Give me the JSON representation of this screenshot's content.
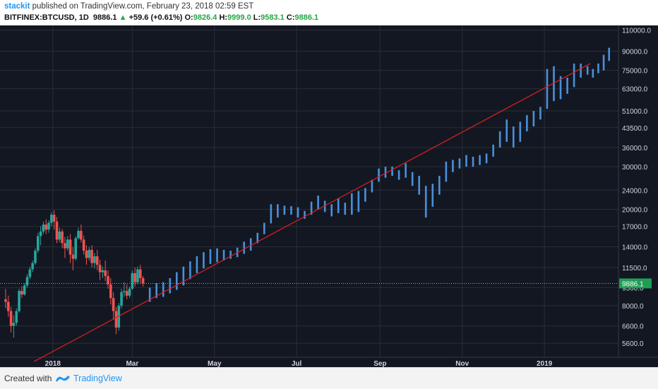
{
  "header": {
    "author": "stackit",
    "published_text": " published on TradingView.com, February 23, 2018 02:59 EST",
    "symbol": "BITFINEX:BTCUSD, 1D",
    "price": "9886.1",
    "change": "+59.6 (+0.61%)",
    "open_label": "O:",
    "open": "9826.4",
    "high_label": "H:",
    "high": "9999.0",
    "low_label": "L:",
    "low": "9583.1",
    "close_label": "C:",
    "close": "9886.1"
  },
  "footer": {
    "created_with": "Created with",
    "brand": "TradingView"
  },
  "colors": {
    "background": "#131722",
    "grid": "#2a2e39",
    "up": "#26a69a",
    "down": "#ef5350",
    "projection": "#4a90d9",
    "trendline": "#e02020",
    "price_line": "#8fb8a0",
    "price_tag": "#1f9e55"
  },
  "chart_data": {
    "type": "ohlc",
    "y_scale": "log",
    "ylim": [
      4900,
      115000
    ],
    "y_ticks": [
      5600,
      6600,
      8000,
      9500,
      11500,
      14000,
      17000,
      20000,
      24000,
      30000,
      36000,
      43500,
      51000,
      63000,
      75000,
      90000,
      110000
    ],
    "y_tick_labels": [
      "5600.0",
      "6600.0",
      "8000.0",
      "9500.0",
      "11500.0",
      "14000.0",
      "17000.0",
      "20000.0",
      "24000.0",
      "30000.0",
      "36000.0",
      "43500.0",
      "51000.0",
      "63000.0",
      "75000.0",
      "90000.0",
      "110000.0"
    ],
    "x_labels": [
      "2018",
      "Mar",
      "May",
      "Jul",
      "Sep",
      "Nov",
      "2019"
    ],
    "x_label_dates": [
      "2018-01-01",
      "2018-03-01",
      "2018-05-01",
      "2018-07-01",
      "2018-09-01",
      "2018-11-01",
      "2019-01-01"
    ],
    "x_range": [
      "2017-11-27",
      "2019-02-04"
    ],
    "last_price": 9886.1,
    "last_price_label": "9886.1",
    "trendline": {
      "start": [
        "2017-12-18",
        4700
      ],
      "end": [
        "2019-02-04",
        80000
      ]
    },
    "daily_candles": [
      {
        "d": "2017-11-27",
        "o": 8500,
        "h": 9400,
        "c": 8300,
        "l": 7800
      },
      {
        "d": "2017-11-29",
        "o": 8300,
        "h": 8800,
        "c": 7600,
        "l": 7200
      },
      {
        "d": "2017-12-01",
        "o": 7600,
        "h": 7900,
        "c": 6600,
        "l": 6200
      },
      {
        "d": "2017-12-03",
        "o": 6600,
        "h": 7300,
        "c": 6800,
        "l": 5900
      },
      {
        "d": "2017-12-05",
        "o": 6800,
        "h": 7800,
        "c": 7600,
        "l": 6600
      },
      {
        "d": "2017-12-07",
        "o": 7600,
        "h": 9400,
        "c": 9200,
        "l": 7500
      },
      {
        "d": "2017-12-09",
        "o": 9200,
        "h": 9600,
        "c": 8900,
        "l": 8600
      },
      {
        "d": "2017-12-11",
        "o": 8900,
        "h": 9900,
        "c": 9700,
        "l": 8800
      },
      {
        "d": "2017-12-13",
        "o": 9700,
        "h": 10800,
        "c": 10500,
        "l": 9500
      },
      {
        "d": "2017-12-15",
        "o": 10500,
        "h": 11600,
        "c": 11300,
        "l": 10300
      },
      {
        "d": "2017-12-17",
        "o": 11300,
        "h": 12300,
        "c": 12000,
        "l": 11000
      },
      {
        "d": "2017-12-19",
        "o": 12000,
        "h": 13800,
        "c": 13500,
        "l": 11800
      },
      {
        "d": "2017-12-21",
        "o": 13500,
        "h": 16000,
        "c": 15500,
        "l": 13200
      },
      {
        "d": "2017-12-23",
        "o": 15500,
        "h": 17000,
        "c": 16200,
        "l": 14200
      },
      {
        "d": "2017-12-25",
        "o": 16200,
        "h": 17800,
        "c": 17300,
        "l": 15800
      },
      {
        "d": "2017-12-27",
        "o": 17300,
        "h": 18200,
        "c": 16500,
        "l": 15800
      },
      {
        "d": "2017-12-29",
        "o": 16500,
        "h": 18000,
        "c": 17600,
        "l": 16000
      },
      {
        "d": "2017-12-31",
        "o": 17600,
        "h": 19500,
        "c": 19000,
        "l": 17000
      },
      {
        "d": "2018-01-02",
        "o": 19000,
        "h": 19800,
        "c": 17800,
        "l": 16500
      },
      {
        "d": "2018-01-04",
        "o": 17800,
        "h": 18600,
        "c": 15000,
        "l": 14500
      },
      {
        "d": "2018-01-06",
        "o": 15000,
        "h": 16800,
        "c": 16200,
        "l": 14600
      },
      {
        "d": "2018-01-08",
        "o": 16200,
        "h": 16600,
        "c": 14500,
        "l": 13800
      },
      {
        "d": "2018-01-10",
        "o": 14500,
        "h": 15400,
        "c": 13800,
        "l": 12600
      },
      {
        "d": "2018-01-12",
        "o": 13800,
        "h": 15500,
        "c": 15000,
        "l": 13500
      },
      {
        "d": "2018-01-14",
        "o": 15000,
        "h": 15800,
        "c": 13000,
        "l": 12000
      },
      {
        "d": "2018-01-16",
        "o": 13000,
        "h": 14000,
        "c": 12500,
        "l": 11200
      },
      {
        "d": "2018-01-18",
        "o": 12500,
        "h": 15500,
        "c": 15200,
        "l": 12300
      },
      {
        "d": "2018-01-20",
        "o": 15200,
        "h": 16800,
        "c": 16300,
        "l": 15000
      },
      {
        "d": "2018-01-22",
        "o": 16300,
        "h": 17300,
        "c": 15000,
        "l": 14600
      },
      {
        "d": "2018-01-24",
        "o": 15000,
        "h": 15600,
        "c": 13500,
        "l": 13000
      },
      {
        "d": "2018-01-26",
        "o": 13500,
        "h": 14200,
        "c": 12600,
        "l": 11800
      },
      {
        "d": "2018-01-28",
        "o": 12600,
        "h": 14000,
        "c": 13600,
        "l": 12300
      },
      {
        "d": "2018-01-30",
        "o": 13600,
        "h": 14200,
        "c": 12000,
        "l": 11500
      },
      {
        "d": "2018-02-01",
        "o": 12000,
        "h": 13200,
        "c": 12800,
        "l": 11400
      },
      {
        "d": "2018-02-03",
        "o": 12800,
        "h": 13600,
        "c": 11800,
        "l": 11200
      },
      {
        "d": "2018-02-05",
        "o": 11800,
        "h": 12400,
        "c": 11000,
        "l": 10200
      },
      {
        "d": "2018-02-07",
        "o": 11000,
        "h": 11600,
        "c": 11200,
        "l": 10400
      },
      {
        "d": "2018-02-09",
        "o": 11200,
        "h": 12300,
        "c": 10600,
        "l": 10100
      },
      {
        "d": "2018-02-11",
        "o": 10600,
        "h": 11200,
        "c": 9800,
        "l": 9400
      },
      {
        "d": "2018-02-13",
        "o": 9800,
        "h": 10400,
        "c": 8600,
        "l": 8100
      },
      {
        "d": "2018-02-15",
        "o": 8600,
        "h": 9100,
        "c": 7600,
        "l": 7000
      },
      {
        "d": "2018-02-17",
        "o": 7600,
        "h": 7900,
        "c": 6500,
        "l": 6100
      },
      {
        "d": "2018-02-19",
        "o": 6500,
        "h": 8200,
        "c": 8000,
        "l": 6300
      },
      {
        "d": "2018-02-21",
        "o": 8000,
        "h": 9400,
        "c": 9100,
        "l": 7800
      },
      {
        "d": "2018-02-23",
        "o": 9100,
        "h": 10000,
        "c": 9200,
        "l": 8700
      },
      {
        "d": "2018-02-25",
        "o": 9200,
        "h": 9800,
        "c": 8800,
        "l": 8500
      },
      {
        "d": "2018-02-27",
        "o": 8800,
        "h": 9600,
        "c": 9400,
        "l": 8600
      },
      {
        "d": "2018-03-01",
        "o": 9400,
        "h": 11200,
        "c": 10900,
        "l": 9300
      },
      {
        "d": "2018-03-03",
        "o": 10900,
        "h": 11500,
        "c": 10000,
        "l": 9600
      },
      {
        "d": "2018-03-05",
        "o": 10000,
        "h": 11600,
        "c": 11300,
        "l": 9800
      },
      {
        "d": "2018-03-07",
        "o": 11300,
        "h": 11800,
        "c": 10400,
        "l": 9900
      },
      {
        "d": "2018-03-09",
        "o": 10400,
        "h": 10600,
        "c": 9900,
        "l": 9600
      }
    ],
    "projection_bars": [
      {
        "d": "2018-03-14",
        "lo": 8300,
        "hi": 9500
      },
      {
        "d": "2018-03-19",
        "lo": 8600,
        "hi": 9900
      },
      {
        "d": "2018-03-24",
        "lo": 8700,
        "hi": 10000
      },
      {
        "d": "2018-03-29",
        "lo": 9000,
        "hi": 10400
      },
      {
        "d": "2018-04-03",
        "lo": 9300,
        "hi": 11000
      },
      {
        "d": "2018-04-08",
        "lo": 9700,
        "hi": 11600
      },
      {
        "d": "2018-04-13",
        "lo": 10300,
        "hi": 12200
      },
      {
        "d": "2018-04-18",
        "lo": 10900,
        "hi": 12800
      },
      {
        "d": "2018-04-23",
        "lo": 11400,
        "hi": 13300
      },
      {
        "d": "2018-04-28",
        "lo": 11900,
        "hi": 13700
      },
      {
        "d": "2018-05-03",
        "lo": 12100,
        "hi": 13800
      },
      {
        "d": "2018-05-08",
        "lo": 12300,
        "hi": 13600
      },
      {
        "d": "2018-05-13",
        "lo": 12500,
        "hi": 13500
      },
      {
        "d": "2018-05-18",
        "lo": 12700,
        "hi": 13900
      },
      {
        "d": "2018-05-23",
        "lo": 13100,
        "hi": 14700
      },
      {
        "d": "2018-05-28",
        "lo": 13500,
        "hi": 15200
      },
      {
        "d": "2018-06-02",
        "lo": 14500,
        "hi": 16000
      },
      {
        "d": "2018-06-07",
        "lo": 15800,
        "hi": 17600
      },
      {
        "d": "2018-06-12",
        "lo": 17500,
        "hi": 21000
      },
      {
        "d": "2018-06-17",
        "lo": 18500,
        "hi": 21000
      },
      {
        "d": "2018-06-22",
        "lo": 19000,
        "hi": 20700
      },
      {
        "d": "2018-06-27",
        "lo": 19000,
        "hi": 20600
      },
      {
        "d": "2018-07-02",
        "lo": 18500,
        "hi": 20400
      },
      {
        "d": "2018-07-07",
        "lo": 18300,
        "hi": 19700
      },
      {
        "d": "2018-07-12",
        "lo": 19000,
        "hi": 21500
      },
      {
        "d": "2018-07-17",
        "lo": 20000,
        "hi": 22800
      },
      {
        "d": "2018-07-22",
        "lo": 19500,
        "hi": 21700
      },
      {
        "d": "2018-07-27",
        "lo": 18700,
        "hi": 21000
      },
      {
        "d": "2018-08-01",
        "lo": 19300,
        "hi": 22200
      },
      {
        "d": "2018-08-06",
        "lo": 19000,
        "hi": 21300
      },
      {
        "d": "2018-08-11",
        "lo": 19000,
        "hi": 23300
      },
      {
        "d": "2018-08-16",
        "lo": 19500,
        "hi": 23800
      },
      {
        "d": "2018-08-21",
        "lo": 21500,
        "hi": 24500
      },
      {
        "d": "2018-08-26",
        "lo": 23500,
        "hi": 26500
      },
      {
        "d": "2018-08-31",
        "lo": 26000,
        "hi": 29500
      },
      {
        "d": "2018-09-05",
        "lo": 27000,
        "hi": 30000
      },
      {
        "d": "2018-09-10",
        "lo": 27500,
        "hi": 30000
      },
      {
        "d": "2018-09-15",
        "lo": 26500,
        "hi": 29000
      },
      {
        "d": "2018-09-20",
        "lo": 27000,
        "hi": 31000
      },
      {
        "d": "2018-09-25",
        "lo": 25000,
        "hi": 28500
      },
      {
        "d": "2018-09-30",
        "lo": 23000,
        "hi": 27500
      },
      {
        "d": "2018-10-05",
        "lo": 18500,
        "hi": 25000
      },
      {
        "d": "2018-10-10",
        "lo": 20500,
        "hi": 25500
      },
      {
        "d": "2018-10-15",
        "lo": 23000,
        "hi": 27500
      },
      {
        "d": "2018-10-20",
        "lo": 26000,
        "hi": 31500
      },
      {
        "d": "2018-10-25",
        "lo": 28500,
        "hi": 32000
      },
      {
        "d": "2018-10-30",
        "lo": 29500,
        "hi": 32500
      },
      {
        "d": "2018-11-04",
        "lo": 30000,
        "hi": 33500
      },
      {
        "d": "2018-11-09",
        "lo": 30000,
        "hi": 33000
      },
      {
        "d": "2018-11-14",
        "lo": 30500,
        "hi": 33500
      },
      {
        "d": "2018-11-19",
        "lo": 31000,
        "hi": 34000
      },
      {
        "d": "2018-11-24",
        "lo": 33000,
        "hi": 37000
      },
      {
        "d": "2018-11-29",
        "lo": 36000,
        "hi": 42000
      },
      {
        "d": "2018-12-04",
        "lo": 38000,
        "hi": 47000
      },
      {
        "d": "2018-12-09",
        "lo": 36000,
        "hi": 44000
      },
      {
        "d": "2018-12-14",
        "lo": 38000,
        "hi": 46000
      },
      {
        "d": "2018-12-19",
        "lo": 42000,
        "hi": 49000
      },
      {
        "d": "2018-12-24",
        "lo": 44000,
        "hi": 51000
      },
      {
        "d": "2018-12-29",
        "lo": 47000,
        "hi": 53000
      },
      {
        "d": "2019-01-03",
        "lo": 52000,
        "hi": 76000
      },
      {
        "d": "2019-01-08",
        "lo": 56000,
        "hi": 78000
      },
      {
        "d": "2019-01-13",
        "lo": 57000,
        "hi": 71000
      },
      {
        "d": "2019-01-18",
        "lo": 60000,
        "hi": 70000
      },
      {
        "d": "2019-01-23",
        "lo": 64000,
        "hi": 80000
      },
      {
        "d": "2019-01-28",
        "lo": 70000,
        "hi": 80000
      },
      {
        "d": "2019-02-02",
        "lo": 72000,
        "hi": 78000
      },
      {
        "d": "2019-02-06",
        "lo": 70000,
        "hi": 76000
      },
      {
        "d": "2019-02-10",
        "lo": 73000,
        "hi": 80000
      },
      {
        "d": "2019-02-14",
        "lo": 75000,
        "hi": 87000
      },
      {
        "d": "2019-02-18",
        "lo": 82000,
        "hi": 93000
      }
    ]
  }
}
